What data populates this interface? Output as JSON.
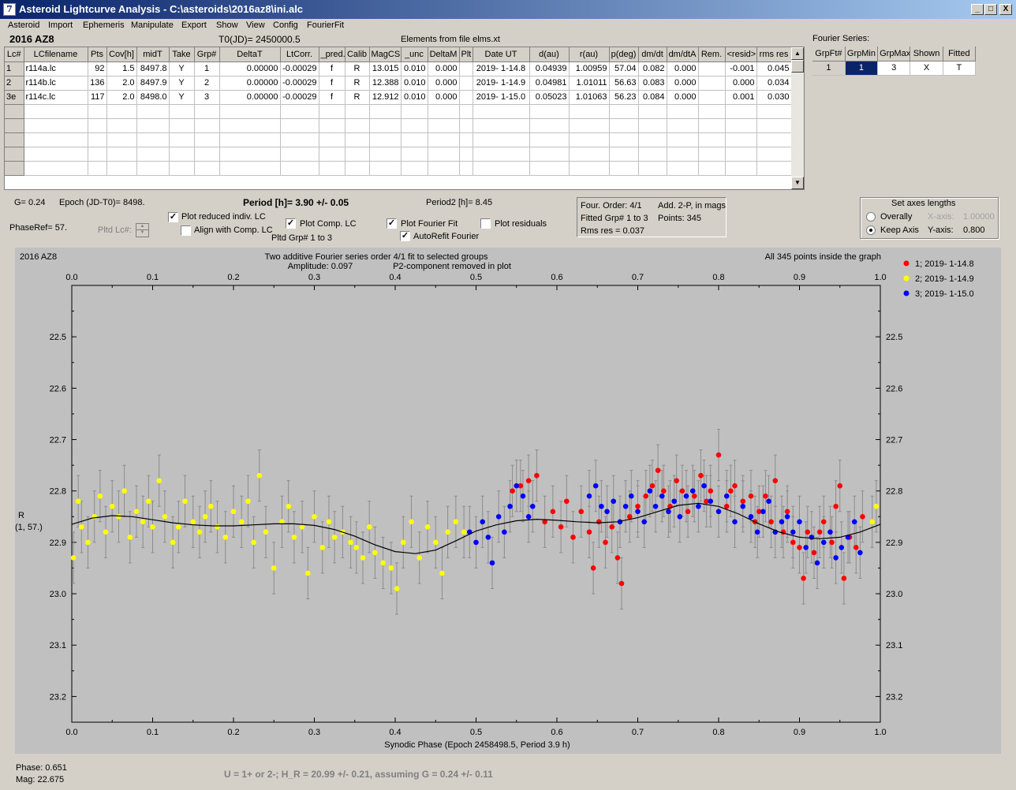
{
  "window": {
    "title": "Asteroid Lightcurve Analysis - C:\\asteroids\\2016az8\\ini.alc",
    "minimize_glyph": "_",
    "maximize_glyph": "□",
    "close_glyph": "X",
    "icon_glyph": "7"
  },
  "menu": [
    "Asteroid",
    "Import",
    "Ephemeris",
    "Manipulate",
    "Export",
    "Show",
    "View",
    "Config",
    "FourierFit"
  ],
  "header": {
    "asteroid": "2016 AZ8",
    "t0": "T0(JD)= 2450000.5",
    "elements": "Elements from file elms.xt",
    "fourier_series_label": "Fourier Series:"
  },
  "lc_table": {
    "columns": [
      "Lc#",
      "LCfilename",
      "Pts",
      "Cov[h]",
      "midT",
      "Take",
      "Grp#",
      "DeltaT",
      "LtCorr.",
      "_pred.",
      "Calib",
      "MagCS",
      "_unc",
      "DeltaM",
      "Plt",
      "Date UT",
      "d(au)",
      "r(au)",
      "p(deg)",
      "dm/dt",
      "dm/dtA",
      "Rem.",
      "<resid>",
      "rms res"
    ],
    "rows": [
      [
        "1",
        "r114a.lc",
        "92",
        "1.5",
        "8497.8",
        "Y",
        "1",
        "0.00000",
        "-0.00029",
        "f",
        "R",
        "13.015",
        "0.010",
        "0.000",
        "",
        "2019- 1-14.8",
        "0.04939",
        "1.00959",
        "57.04",
        "0.082",
        "0.000",
        "",
        "-0.001",
        "0.045"
      ],
      [
        "2",
        "r114b.lc",
        "136",
        "2.0",
        "8497.9",
        "Y",
        "2",
        "0.00000",
        "-0.00029",
        "f",
        "R",
        "12.388",
        "0.010",
        "0.000",
        "",
        "2019- 1-14.9",
        "0.04981",
        "1.01011",
        "56.63",
        "0.083",
        "0.000",
        "",
        "0.000",
        "0.034"
      ],
      [
        "3e",
        "r114c.lc",
        "117",
        "2.0",
        "8498.0",
        "Y",
        "3",
        "0.00000",
        "-0.00029",
        "f",
        "R",
        "12.912",
        "0.010",
        "0.000",
        "",
        "2019- 1-15.0",
        "0.05023",
        "1.01063",
        "56.23",
        "0.084",
        "0.000",
        "",
        "0.001",
        "0.030"
      ]
    ],
    "scroll_up": "▲",
    "scroll_down": "▼"
  },
  "fourier_table": {
    "columns": [
      "GrpFt#",
      "GrpMin",
      "GrpMax",
      "Shown",
      "Fitted"
    ],
    "row": [
      "1",
      "1",
      "3",
      "X",
      "T"
    ]
  },
  "controls": {
    "g": "G= 0.24",
    "epoch": "Epoch (JD-T0)= 8498.",
    "period": "Period [h]= 3.90 +/- 0.05",
    "period2": "Period2 [h]= 8.45",
    "phaseref": "PhaseRef= 57.",
    "pltd_lc": "Pltd Lc#:",
    "plot_reduced": "Plot reduced indiv. LC",
    "align_comp": "Align with Comp. LC",
    "plot_comp": "Plot Comp. LC",
    "pltd_grp": "Pltd Grp#  1   to   3",
    "plot_fourier": "Plot Fourier Fit",
    "autorefit": "AutoRefit Fourier",
    "plot_residuals": "Plot residuals",
    "check_mark": "✓"
  },
  "fit_info": {
    "order": "Four. Order:  4/1",
    "add": "Add. 2-P, in mags",
    "fitted": "Fitted Grp# 1 to 3",
    "points": "Points: 345",
    "rms": "Rms res     = 0.037"
  },
  "axes_box": {
    "title": "Set axes lengths",
    "overally": "Overally",
    "keep_axis": "Keep Axis",
    "x_axis_label": "X-axis:",
    "x_axis_value": "1.00000",
    "y_axis_label": "Y-axis:",
    "y_axis_value": "0.800"
  },
  "plot": {
    "name": "2016 AZ8",
    "title_line1": "Two additive Fourier series order 4/1 fit to selected groups",
    "title_line2a": "Amplitude: 0.097",
    "title_line2b": "P2-component removed in plot",
    "inside": "All 345 points inside the graph",
    "ylabel1": "R",
    "ylabel2": "(1, 57.)",
    "xlabel": "Synodic Phase (Epoch 2458498.5, Period 3.9 h)"
  },
  "chart_data": {
    "type": "scatter",
    "xlim": [
      0.0,
      1.0
    ],
    "ylim": [
      22.4,
      23.25
    ],
    "y_inverted": true,
    "x_ticks": [
      "0.0",
      "0.1",
      "0.2",
      "0.3",
      "0.4",
      "0.5",
      "0.6",
      "0.7",
      "0.8",
      "0.9",
      "1.0"
    ],
    "y_ticks": [
      "22.5",
      "22.6",
      "22.7",
      "22.8",
      "22.9",
      "23.0",
      "23.1",
      "23.2"
    ],
    "grid": false,
    "legend_position": "right",
    "series": [
      {
        "name": "1; 2019- 1-14.8",
        "color": "#ff0000",
        "phase_range": [
          0.54,
          0.99
        ],
        "points": [
          [
            0.545,
            22.8
          ],
          [
            0.555,
            22.79
          ],
          [
            0.565,
            22.78
          ],
          [
            0.575,
            22.77
          ],
          [
            0.585,
            22.86
          ],
          [
            0.595,
            22.84
          ],
          [
            0.605,
            22.87
          ],
          [
            0.612,
            22.82
          ],
          [
            0.62,
            22.89
          ],
          [
            0.63,
            22.84
          ],
          [
            0.64,
            22.88
          ],
          [
            0.645,
            22.95
          ],
          [
            0.652,
            22.86
          ],
          [
            0.66,
            22.9
          ],
          [
            0.668,
            22.87
          ],
          [
            0.675,
            22.93
          ],
          [
            0.68,
            22.98
          ],
          [
            0.69,
            22.85
          ],
          [
            0.7,
            22.83
          ],
          [
            0.71,
            22.81
          ],
          [
            0.718,
            22.79
          ],
          [
            0.725,
            22.76
          ],
          [
            0.732,
            22.8
          ],
          [
            0.74,
            22.83
          ],
          [
            0.748,
            22.78
          ],
          [
            0.755,
            22.8
          ],
          [
            0.762,
            22.84
          ],
          [
            0.77,
            22.81
          ],
          [
            0.778,
            22.77
          ],
          [
            0.785,
            22.82
          ],
          [
            0.79,
            22.8
          ],
          [
            0.8,
            22.73
          ],
          [
            0.81,
            22.83
          ],
          [
            0.815,
            22.8
          ],
          [
            0.82,
            22.79
          ],
          [
            0.83,
            22.82
          ],
          [
            0.84,
            22.81
          ],
          [
            0.845,
            22.86
          ],
          [
            0.85,
            22.84
          ],
          [
            0.858,
            22.81
          ],
          [
            0.865,
            22.86
          ],
          [
            0.87,
            22.78
          ],
          [
            0.88,
            22.88
          ],
          [
            0.885,
            22.84
          ],
          [
            0.892,
            22.9
          ],
          [
            0.9,
            22.91
          ],
          [
            0.905,
            22.97
          ],
          [
            0.91,
            22.88
          ],
          [
            0.918,
            22.92
          ],
          [
            0.925,
            22.88
          ],
          [
            0.93,
            22.86
          ],
          [
            0.94,
            22.9
          ],
          [
            0.945,
            22.83
          ],
          [
            0.95,
            22.79
          ],
          [
            0.955,
            22.97
          ],
          [
            0.962,
            22.89
          ],
          [
            0.97,
            22.91
          ],
          [
            0.978,
            22.85
          ]
        ]
      },
      {
        "name": "2; 2019- 1-14.9",
        "color": "#ffff00",
        "phase_range": [
          0.0,
          0.49
        ],
        "points": [
          [
            0.002,
            22.93
          ],
          [
            0.008,
            22.82
          ],
          [
            0.012,
            22.87
          ],
          [
            0.02,
            22.9
          ],
          [
            0.028,
            22.85
          ],
          [
            0.035,
            22.81
          ],
          [
            0.042,
            22.88
          ],
          [
            0.05,
            22.83
          ],
          [
            0.058,
            22.85
          ],
          [
            0.065,
            22.8
          ],
          [
            0.072,
            22.89
          ],
          [
            0.08,
            22.84
          ],
          [
            0.088,
            22.86
          ],
          [
            0.095,
            22.82
          ],
          [
            0.1,
            22.87
          ],
          [
            0.108,
            22.78
          ],
          [
            0.115,
            22.85
          ],
          [
            0.125,
            22.9
          ],
          [
            0.132,
            22.87
          ],
          [
            0.14,
            22.82
          ],
          [
            0.15,
            22.86
          ],
          [
            0.158,
            22.88
          ],
          [
            0.165,
            22.85
          ],
          [
            0.172,
            22.83
          ],
          [
            0.18,
            22.87
          ],
          [
            0.19,
            22.89
          ],
          [
            0.2,
            22.84
          ],
          [
            0.21,
            22.86
          ],
          [
            0.218,
            22.82
          ],
          [
            0.225,
            22.9
          ],
          [
            0.232,
            22.77
          ],
          [
            0.24,
            22.88
          ],
          [
            0.25,
            22.95
          ],
          [
            0.26,
            22.86
          ],
          [
            0.268,
            22.83
          ],
          [
            0.275,
            22.89
          ],
          [
            0.285,
            22.87
          ],
          [
            0.292,
            22.96
          ],
          [
            0.3,
            22.85
          ],
          [
            0.31,
            22.91
          ],
          [
            0.318,
            22.86
          ],
          [
            0.325,
            22.89
          ],
          [
            0.335,
            22.88
          ],
          [
            0.345,
            22.9
          ],
          [
            0.352,
            22.91
          ],
          [
            0.36,
            22.93
          ],
          [
            0.368,
            22.87
          ],
          [
            0.375,
            22.92
          ],
          [
            0.385,
            22.94
          ],
          [
            0.395,
            22.95
          ],
          [
            0.402,
            22.99
          ],
          [
            0.41,
            22.9
          ],
          [
            0.42,
            22.86
          ],
          [
            0.43,
            22.93
          ],
          [
            0.44,
            22.87
          ],
          [
            0.45,
            22.9
          ],
          [
            0.458,
            22.96
          ],
          [
            0.465,
            22.88
          ],
          [
            0.475,
            22.86
          ],
          [
            0.485,
            22.88
          ],
          [
            0.99,
            22.86
          ],
          [
            0.995,
            22.83
          ]
        ]
      },
      {
        "name": "3; 2019- 1-15.0",
        "color": "#0000ff",
        "phase_range": [
          0.49,
          0.98
        ],
        "points": [
          [
            0.492,
            22.88
          ],
          [
            0.5,
            22.9
          ],
          [
            0.508,
            22.86
          ],
          [
            0.515,
            22.89
          ],
          [
            0.52,
            22.94
          ],
          [
            0.528,
            22.85
          ],
          [
            0.535,
            22.88
          ],
          [
            0.542,
            22.83
          ],
          [
            0.55,
            22.79
          ],
          [
            0.558,
            22.81
          ],
          [
            0.565,
            22.85
          ],
          [
            0.57,
            22.83
          ],
          [
            0.64,
            22.81
          ],
          [
            0.648,
            22.79
          ],
          [
            0.655,
            22.83
          ],
          [
            0.662,
            22.84
          ],
          [
            0.67,
            22.82
          ],
          [
            0.678,
            22.86
          ],
          [
            0.685,
            22.83
          ],
          [
            0.692,
            22.81
          ],
          [
            0.7,
            22.84
          ],
          [
            0.708,
            22.86
          ],
          [
            0.715,
            22.8
          ],
          [
            0.722,
            22.83
          ],
          [
            0.73,
            22.81
          ],
          [
            0.738,
            22.84
          ],
          [
            0.745,
            22.82
          ],
          [
            0.752,
            22.85
          ],
          [
            0.76,
            22.81
          ],
          [
            0.768,
            22.8
          ],
          [
            0.775,
            22.83
          ],
          [
            0.782,
            22.79
          ],
          [
            0.79,
            22.82
          ],
          [
            0.8,
            22.84
          ],
          [
            0.81,
            22.81
          ],
          [
            0.82,
            22.86
          ],
          [
            0.83,
            22.83
          ],
          [
            0.84,
            22.85
          ],
          [
            0.848,
            22.88
          ],
          [
            0.855,
            22.84
          ],
          [
            0.862,
            22.82
          ],
          [
            0.87,
            22.88
          ],
          [
            0.878,
            22.86
          ],
          [
            0.885,
            22.85
          ],
          [
            0.892,
            22.88
          ],
          [
            0.9,
            22.86
          ],
          [
            0.908,
            22.91
          ],
          [
            0.915,
            22.89
          ],
          [
            0.922,
            22.94
          ],
          [
            0.93,
            22.9
          ],
          [
            0.938,
            22.88
          ],
          [
            0.945,
            22.93
          ],
          [
            0.952,
            22.91
          ],
          [
            0.96,
            22.89
          ],
          [
            0.968,
            22.86
          ],
          [
            0.975,
            22.92
          ]
        ]
      }
    ],
    "fit_curve": {
      "name": "Fourier fit",
      "color": "#000000",
      "points": [
        [
          0.0,
          22.865
        ],
        [
          0.025,
          22.853
        ],
        [
          0.05,
          22.848
        ],
        [
          0.075,
          22.85
        ],
        [
          0.1,
          22.856
        ],
        [
          0.125,
          22.862
        ],
        [
          0.15,
          22.866
        ],
        [
          0.175,
          22.868
        ],
        [
          0.2,
          22.868
        ],
        [
          0.225,
          22.866
        ],
        [
          0.25,
          22.864
        ],
        [
          0.275,
          22.864
        ],
        [
          0.3,
          22.867
        ],
        [
          0.325,
          22.875
        ],
        [
          0.35,
          22.888
        ],
        [
          0.375,
          22.905
        ],
        [
          0.4,
          22.918
        ],
        [
          0.425,
          22.922
        ],
        [
          0.45,
          22.915
        ],
        [
          0.475,
          22.897
        ],
        [
          0.5,
          22.878
        ],
        [
          0.525,
          22.866
        ],
        [
          0.55,
          22.858
        ],
        [
          0.575,
          22.855
        ],
        [
          0.6,
          22.857
        ],
        [
          0.625,
          22.86
        ],
        [
          0.65,
          22.862
        ],
        [
          0.675,
          22.86
        ],
        [
          0.7,
          22.852
        ],
        [
          0.725,
          22.84
        ],
        [
          0.75,
          22.828
        ],
        [
          0.775,
          22.824
        ],
        [
          0.8,
          22.83
        ],
        [
          0.825,
          22.845
        ],
        [
          0.85,
          22.864
        ],
        [
          0.875,
          22.88
        ],
        [
          0.9,
          22.89
        ],
        [
          0.925,
          22.893
        ],
        [
          0.95,
          22.89
        ],
        [
          0.975,
          22.88
        ],
        [
          1.0,
          22.865
        ]
      ]
    }
  },
  "status": {
    "phase": "Phase:  0.651",
    "mag": "Mag:    22.675",
    "hr": "U = 1+ or 2-; H_R = 20.99 +/- 0.21, assuming G = 0.24 +/- 0.11"
  }
}
